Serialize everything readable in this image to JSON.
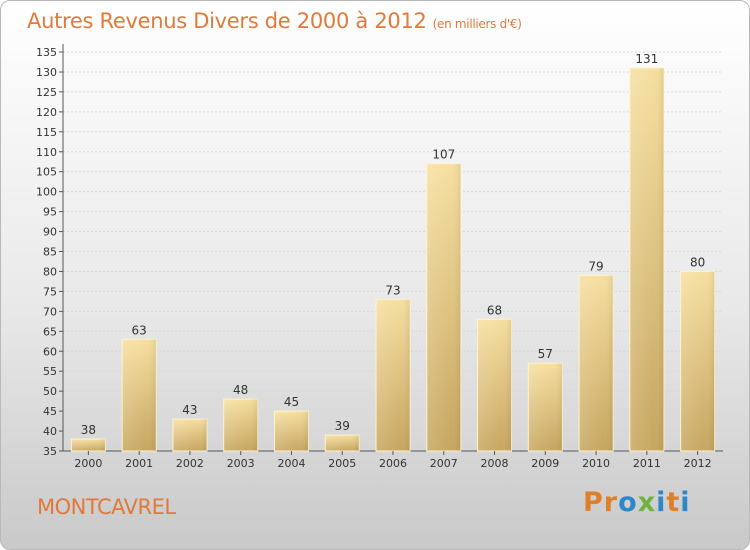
{
  "title": "Autres Revenus Divers de 2000 à 2012",
  "subtitle": "(en milliers d'€)",
  "commune": "MONTCAVREL",
  "logo": {
    "text": "Proxiti",
    "colors": [
      "#e07f2a",
      "#e07f2a",
      "#2f86c8",
      "#6cb33f",
      "#2f86c8",
      "#e07f2a",
      "#2f86c8"
    ]
  },
  "colors": {
    "accent": "#e2793a",
    "bar_light": "#f6dfa0",
    "bar_dark": "#c6a660",
    "grid": "#d8d8d8"
  },
  "chart_data": {
    "type": "bar",
    "categories": [
      "2000",
      "2001",
      "2002",
      "2003",
      "2004",
      "2005",
      "2006",
      "2007",
      "2008",
      "2009",
      "2010",
      "2011",
      "2012"
    ],
    "values": [
      38,
      63,
      43,
      48,
      45,
      39,
      73,
      107,
      68,
      57,
      79,
      131,
      80
    ],
    "data_labels": [
      "38",
      "63",
      "43",
      "48",
      "45",
      "39",
      "73",
      "107",
      "68",
      "57",
      "79",
      "131",
      "80"
    ],
    "y_ticks": [
      "35",
      "40",
      "45",
      "50",
      "55",
      "60",
      "65",
      "70",
      "75",
      "80",
      "85",
      "90",
      "95",
      "100",
      "105",
      "110",
      "115",
      "120",
      "125",
      "130",
      "135"
    ],
    "ylim": [
      35,
      135
    ],
    "ytick_step": 5,
    "grid": true,
    "legend": "none"
  }
}
